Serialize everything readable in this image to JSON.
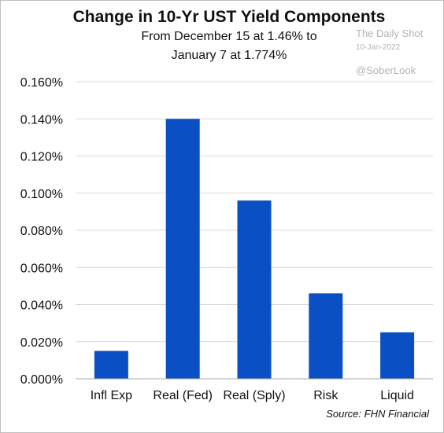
{
  "chart_data": {
    "type": "bar",
    "title": "Change in 10-Yr UST Yield Components",
    "subtitle_lines": [
      "From December 15 at 1.46% to",
      "January 7 at 1.774%"
    ],
    "categories": [
      "Infl Exp",
      "Real (Fed)",
      "Real (Sply)",
      "Risk",
      "Liquid"
    ],
    "values": [
      0.015,
      0.14,
      0.096,
      0.046,
      0.025
    ],
    "ylim": [
      0,
      0.16
    ],
    "yticks": [
      0,
      0.02,
      0.04,
      0.06,
      0.08,
      0.1,
      0.12,
      0.14,
      0.16
    ],
    "ytick_labels": [
      "0.000%",
      "0.020%",
      "0.040%",
      "0.060%",
      "0.080%",
      "0.100%",
      "0.120%",
      "0.140%",
      "0.160%"
    ],
    "xlabel": "",
    "ylabel": "",
    "grid": true,
    "bar_color": "#0a4fc4",
    "grid_color": "#d9d9d9"
  },
  "watermark": {
    "line1": "The Daily Shot",
    "line2": "10-Jan-2022",
    "line3": "@SoberLook"
  },
  "source": "Source: FHN Financial"
}
